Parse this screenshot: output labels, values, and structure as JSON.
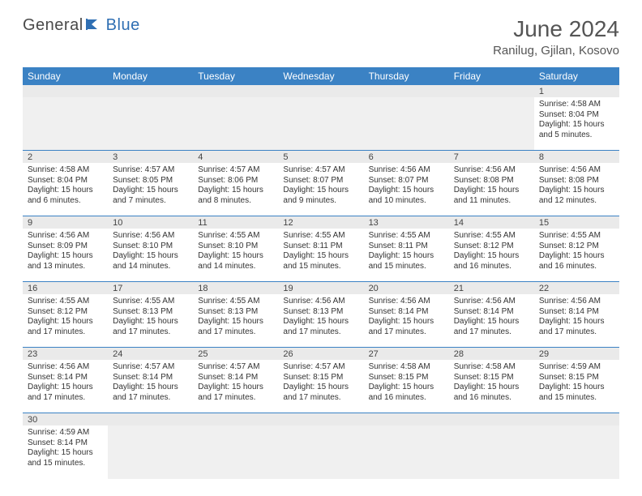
{
  "logo": {
    "text1": "General",
    "text2": "Blue"
  },
  "title": "June 2024",
  "location": "Ranilug, Gjilan, Kosovo",
  "colors": {
    "header_bg": "#3b82c4",
    "header_fg": "#ffffff",
    "daynum_bg": "#eaeaea",
    "cell_border": "#3b82c4",
    "page_bg": "#ffffff",
    "title_color": "#555555",
    "logo_gray": "#4a4a4a",
    "logo_blue": "#2f6fb3"
  },
  "day_names": [
    "Sunday",
    "Monday",
    "Tuesday",
    "Wednesday",
    "Thursday",
    "Friday",
    "Saturday"
  ],
  "weeks": [
    [
      null,
      null,
      null,
      null,
      null,
      null,
      {
        "n": "1",
        "sr": "Sunrise: 4:58 AM",
        "ss": "Sunset: 8:04 PM",
        "dl": "Daylight: 15 hours and 5 minutes."
      }
    ],
    [
      {
        "n": "2",
        "sr": "Sunrise: 4:58 AM",
        "ss": "Sunset: 8:04 PM",
        "dl": "Daylight: 15 hours and 6 minutes."
      },
      {
        "n": "3",
        "sr": "Sunrise: 4:57 AM",
        "ss": "Sunset: 8:05 PM",
        "dl": "Daylight: 15 hours and 7 minutes."
      },
      {
        "n": "4",
        "sr": "Sunrise: 4:57 AM",
        "ss": "Sunset: 8:06 PM",
        "dl": "Daylight: 15 hours and 8 minutes."
      },
      {
        "n": "5",
        "sr": "Sunrise: 4:57 AM",
        "ss": "Sunset: 8:07 PM",
        "dl": "Daylight: 15 hours and 9 minutes."
      },
      {
        "n": "6",
        "sr": "Sunrise: 4:56 AM",
        "ss": "Sunset: 8:07 PM",
        "dl": "Daylight: 15 hours and 10 minutes."
      },
      {
        "n": "7",
        "sr": "Sunrise: 4:56 AM",
        "ss": "Sunset: 8:08 PM",
        "dl": "Daylight: 15 hours and 11 minutes."
      },
      {
        "n": "8",
        "sr": "Sunrise: 4:56 AM",
        "ss": "Sunset: 8:08 PM",
        "dl": "Daylight: 15 hours and 12 minutes."
      }
    ],
    [
      {
        "n": "9",
        "sr": "Sunrise: 4:56 AM",
        "ss": "Sunset: 8:09 PM",
        "dl": "Daylight: 15 hours and 13 minutes."
      },
      {
        "n": "10",
        "sr": "Sunrise: 4:56 AM",
        "ss": "Sunset: 8:10 PM",
        "dl": "Daylight: 15 hours and 14 minutes."
      },
      {
        "n": "11",
        "sr": "Sunrise: 4:55 AM",
        "ss": "Sunset: 8:10 PM",
        "dl": "Daylight: 15 hours and 14 minutes."
      },
      {
        "n": "12",
        "sr": "Sunrise: 4:55 AM",
        "ss": "Sunset: 8:11 PM",
        "dl": "Daylight: 15 hours and 15 minutes."
      },
      {
        "n": "13",
        "sr": "Sunrise: 4:55 AM",
        "ss": "Sunset: 8:11 PM",
        "dl": "Daylight: 15 hours and 15 minutes."
      },
      {
        "n": "14",
        "sr": "Sunrise: 4:55 AM",
        "ss": "Sunset: 8:12 PM",
        "dl": "Daylight: 15 hours and 16 minutes."
      },
      {
        "n": "15",
        "sr": "Sunrise: 4:55 AM",
        "ss": "Sunset: 8:12 PM",
        "dl": "Daylight: 15 hours and 16 minutes."
      }
    ],
    [
      {
        "n": "16",
        "sr": "Sunrise: 4:55 AM",
        "ss": "Sunset: 8:12 PM",
        "dl": "Daylight: 15 hours and 17 minutes."
      },
      {
        "n": "17",
        "sr": "Sunrise: 4:55 AM",
        "ss": "Sunset: 8:13 PM",
        "dl": "Daylight: 15 hours and 17 minutes."
      },
      {
        "n": "18",
        "sr": "Sunrise: 4:55 AM",
        "ss": "Sunset: 8:13 PM",
        "dl": "Daylight: 15 hours and 17 minutes."
      },
      {
        "n": "19",
        "sr": "Sunrise: 4:56 AM",
        "ss": "Sunset: 8:13 PM",
        "dl": "Daylight: 15 hours and 17 minutes."
      },
      {
        "n": "20",
        "sr": "Sunrise: 4:56 AM",
        "ss": "Sunset: 8:14 PM",
        "dl": "Daylight: 15 hours and 17 minutes."
      },
      {
        "n": "21",
        "sr": "Sunrise: 4:56 AM",
        "ss": "Sunset: 8:14 PM",
        "dl": "Daylight: 15 hours and 17 minutes."
      },
      {
        "n": "22",
        "sr": "Sunrise: 4:56 AM",
        "ss": "Sunset: 8:14 PM",
        "dl": "Daylight: 15 hours and 17 minutes."
      }
    ],
    [
      {
        "n": "23",
        "sr": "Sunrise: 4:56 AM",
        "ss": "Sunset: 8:14 PM",
        "dl": "Daylight: 15 hours and 17 minutes."
      },
      {
        "n": "24",
        "sr": "Sunrise: 4:57 AM",
        "ss": "Sunset: 8:14 PM",
        "dl": "Daylight: 15 hours and 17 minutes."
      },
      {
        "n": "25",
        "sr": "Sunrise: 4:57 AM",
        "ss": "Sunset: 8:14 PM",
        "dl": "Daylight: 15 hours and 17 minutes."
      },
      {
        "n": "26",
        "sr": "Sunrise: 4:57 AM",
        "ss": "Sunset: 8:15 PM",
        "dl": "Daylight: 15 hours and 17 minutes."
      },
      {
        "n": "27",
        "sr": "Sunrise: 4:58 AM",
        "ss": "Sunset: 8:15 PM",
        "dl": "Daylight: 15 hours and 16 minutes."
      },
      {
        "n": "28",
        "sr": "Sunrise: 4:58 AM",
        "ss": "Sunset: 8:15 PM",
        "dl": "Daylight: 15 hours and 16 minutes."
      },
      {
        "n": "29",
        "sr": "Sunrise: 4:59 AM",
        "ss": "Sunset: 8:15 PM",
        "dl": "Daylight: 15 hours and 15 minutes."
      }
    ],
    [
      {
        "n": "30",
        "sr": "Sunrise: 4:59 AM",
        "ss": "Sunset: 8:14 PM",
        "dl": "Daylight: 15 hours and 15 minutes."
      },
      null,
      null,
      null,
      null,
      null,
      null
    ]
  ]
}
